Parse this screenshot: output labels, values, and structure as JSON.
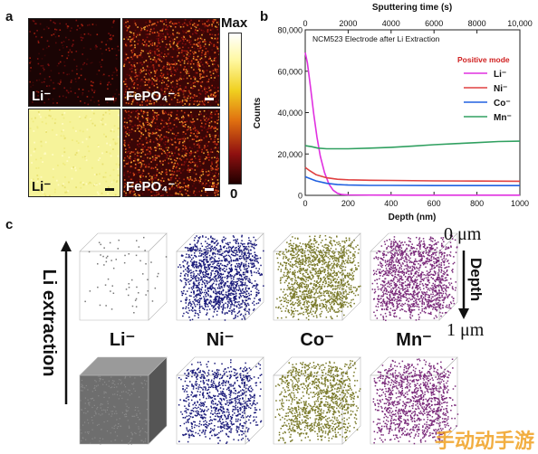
{
  "panel_a": {
    "letter": "a",
    "maps": [
      {
        "label": "Li⁻"
      },
      {
        "label": "FePO₄⁻"
      },
      {
        "label": "Li⁻"
      },
      {
        "label": "FePO₄⁻"
      }
    ],
    "colorbar": {
      "max": "Max",
      "min": "0"
    }
  },
  "panel_b": {
    "letter": "b",
    "top_axis_title": "Sputtering time (s)",
    "top_ticks": [
      "0",
      "2000",
      "4000",
      "6000",
      "8000",
      "10,000"
    ],
    "legend_title": "Positive mode",
    "colors": {
      "li": "#e030e0",
      "ni": "#e04040",
      "co": "#2060e0",
      "mn": "#30a060",
      "legend_title": "#d02020"
    }
  },
  "chart_data": {
    "type": "line",
    "title": "NCM523 Electrode after Li Extraction",
    "xlabel": "Depth (nm)",
    "ylabel": "Counts",
    "xlim": [
      0,
      1000
    ],
    "ylim": [
      0,
      80000
    ],
    "xticks": [
      "0",
      "200",
      "400",
      "600",
      "800",
      "1000"
    ],
    "yticks": [
      "0",
      "20,000",
      "40,000",
      "60,000",
      "80,000"
    ],
    "legend_position": "right",
    "series": [
      {
        "name": "Li⁻",
        "color": "#e030e0",
        "x": [
          0,
          10,
          25,
          40,
          55,
          70,
          90,
          110,
          130,
          150,
          170,
          200,
          300,
          500,
          1000
        ],
        "y": [
          69000,
          64000,
          52000,
          39000,
          28000,
          19000,
          11000,
          5500,
          2500,
          1000,
          400,
          200,
          150,
          100,
          100
        ]
      },
      {
        "name": "Ni⁻",
        "color": "#e04040",
        "x": [
          0,
          20,
          50,
          100,
          150,
          200,
          300,
          400,
          600,
          800,
          1000
        ],
        "y": [
          13500,
          12000,
          10000,
          8500,
          7800,
          7500,
          7300,
          7200,
          7000,
          6900,
          6800
        ]
      },
      {
        "name": "Co⁻",
        "color": "#2060e0",
        "x": [
          0,
          20,
          50,
          100,
          150,
          200,
          300,
          400,
          600,
          800,
          1000
        ],
        "y": [
          9000,
          8200,
          7000,
          5800,
          5200,
          5000,
          4800,
          4800,
          4700,
          4700,
          4700
        ]
      },
      {
        "name": "Mn⁻",
        "color": "#30a060",
        "x": [
          0,
          30,
          60,
          100,
          200,
          300,
          400,
          500,
          600,
          700,
          800,
          900,
          1000
        ],
        "y": [
          24000,
          23500,
          22800,
          22500,
          22500,
          22800,
          23200,
          23800,
          24500,
          25000,
          25500,
          26000,
          26200
        ]
      }
    ]
  },
  "panel_c": {
    "letter": "c",
    "axis_label": "Li extraction",
    "depth_label": "Depth",
    "depth_top": "0 μm",
    "depth_bottom": "1 μm",
    "cube_labels": [
      "Li⁻",
      "Ni⁻",
      "Co⁻",
      "Mn⁻"
    ],
    "cube_colors": {
      "li_top": "#9a9a9a",
      "li_bottom": "#6e6e6e",
      "ni": "#1a1a7a",
      "co": "#7a7a2a",
      "mn": "#7a2a7a"
    }
  },
  "watermark": "手动动手游"
}
